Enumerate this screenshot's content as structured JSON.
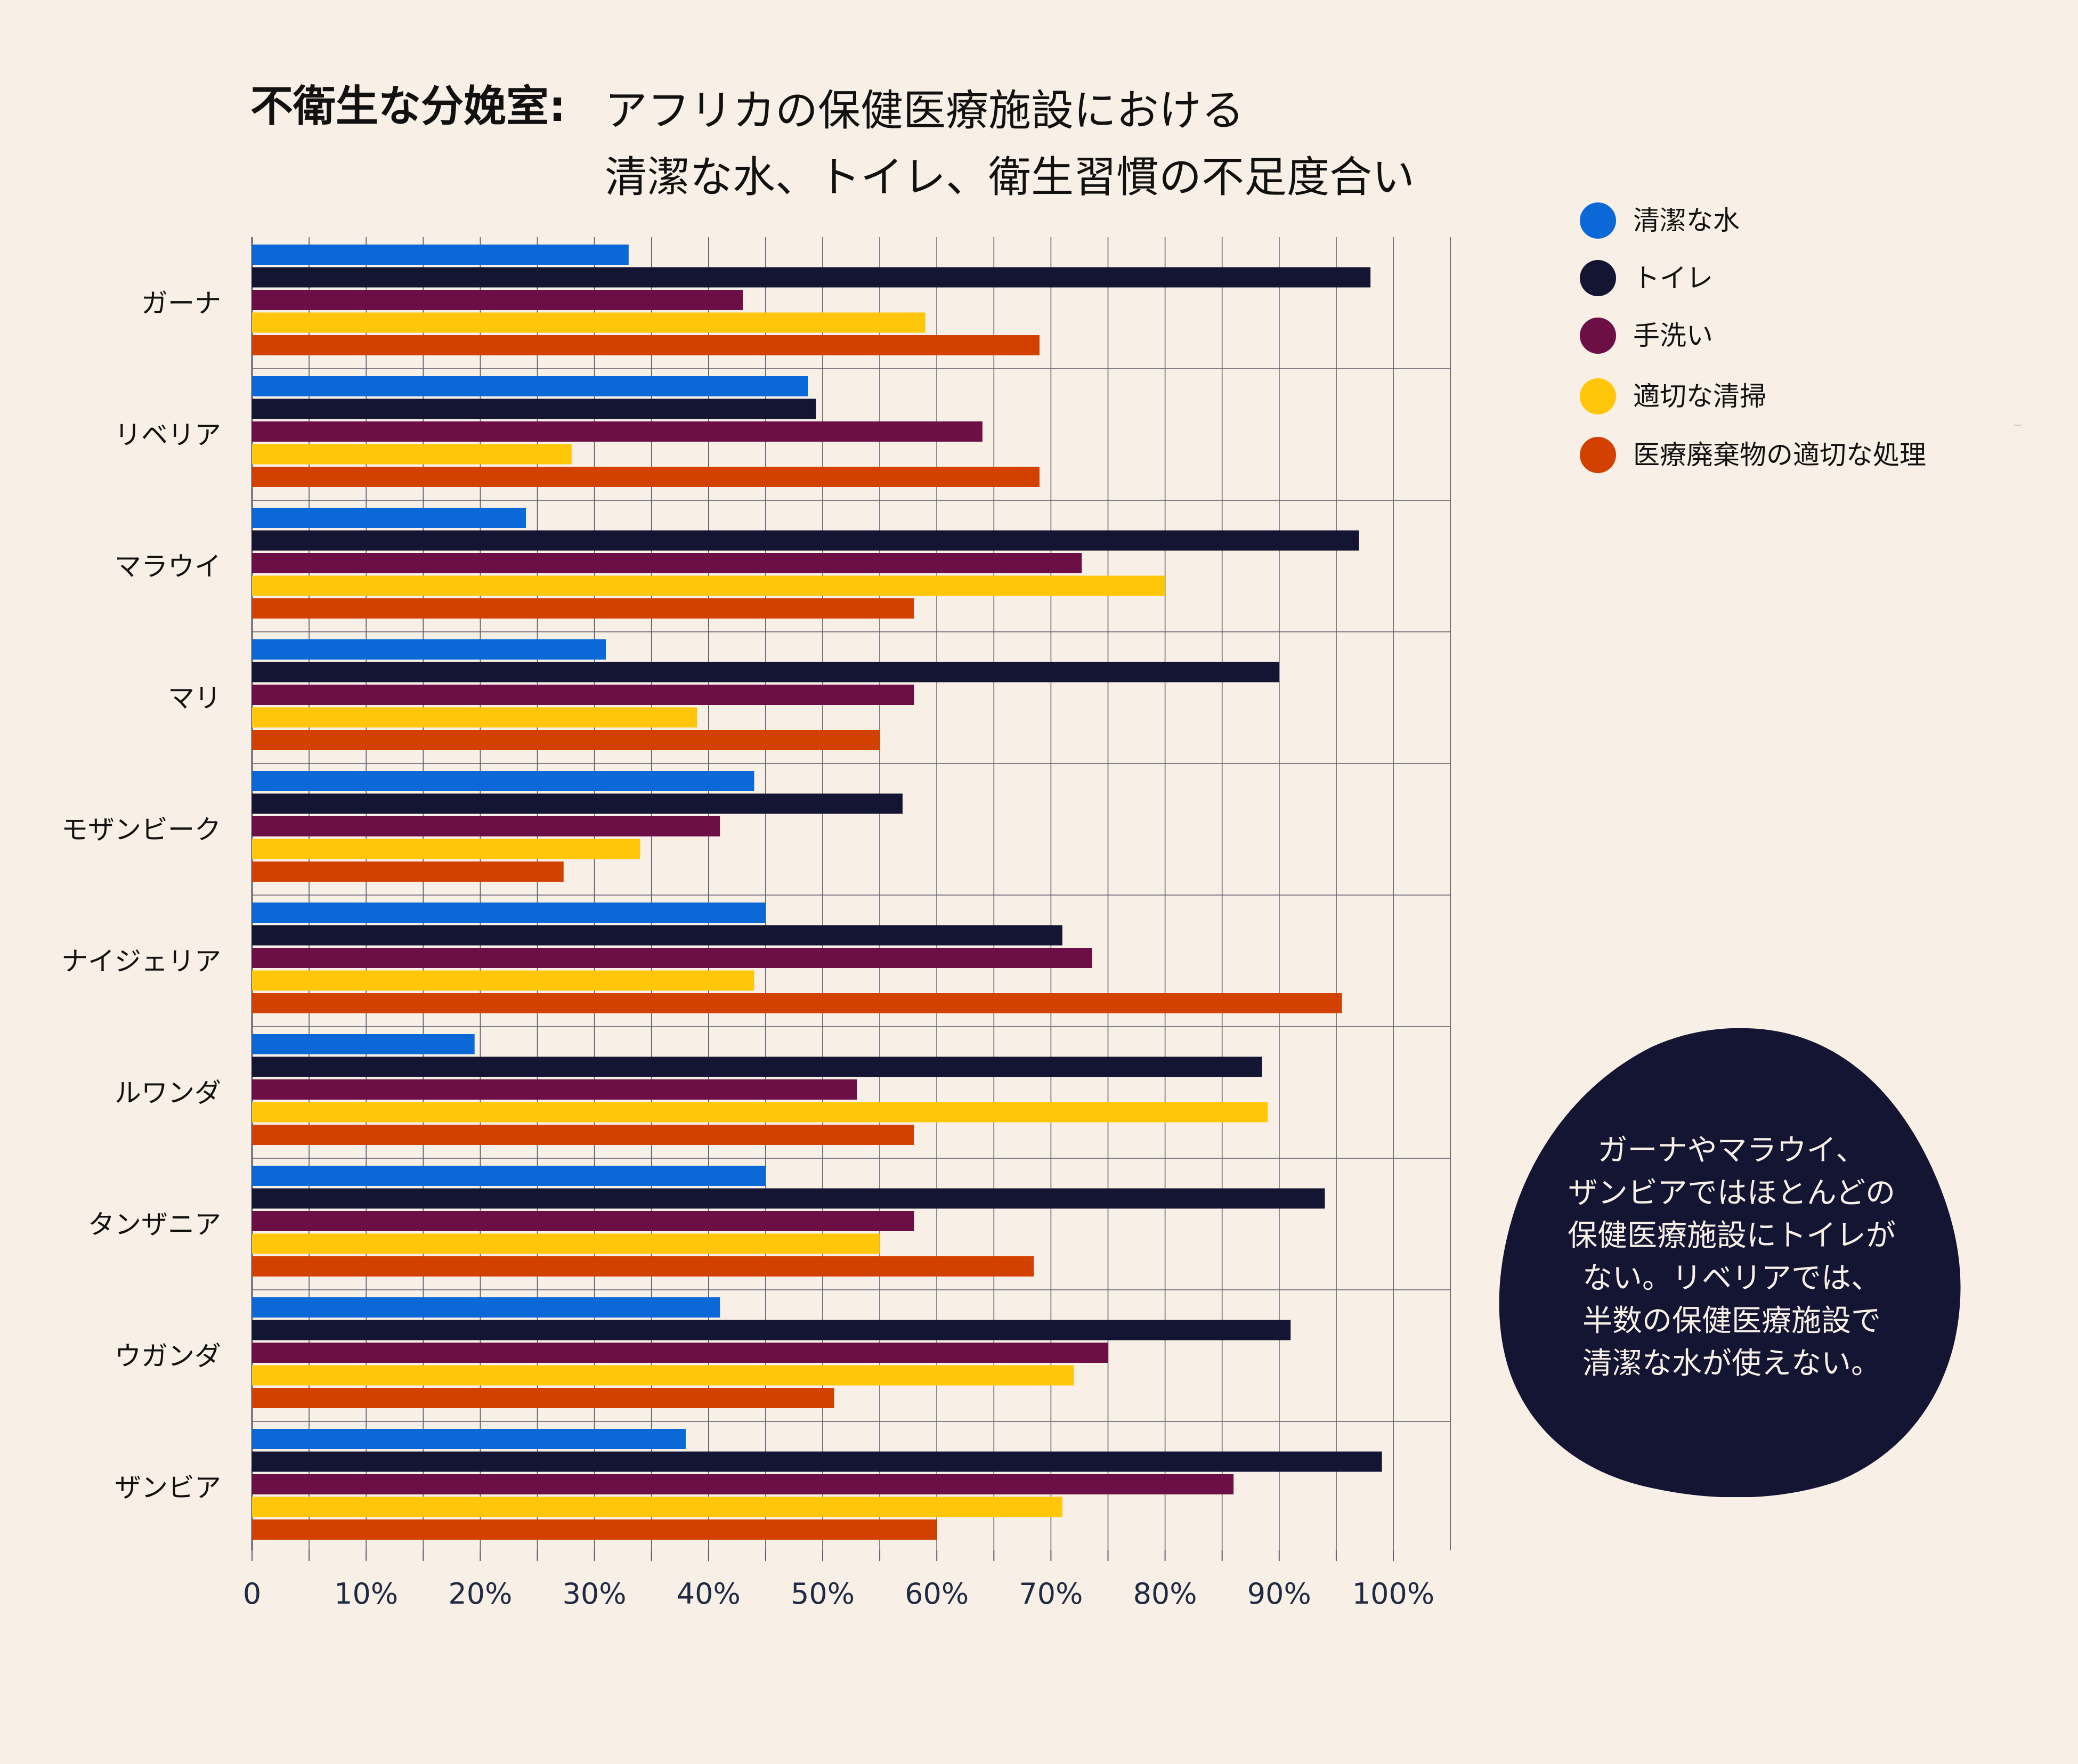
{
  "title": {
    "bold": "不衛生な分娩室:",
    "line1": "アフリカの保健医療施設における",
    "line2": "清潔な水、トイレ、衛生習慣の不足度合い"
  },
  "colors": {
    "background": "#f8f0e6",
    "grid": "#5a5a6a",
    "axis_text": "#1f2a44",
    "callout_bg": "#141433"
  },
  "legend": [
    {
      "label": "清潔な水",
      "color": "#0a69d6"
    },
    {
      "label": "トイレ",
      "color": "#141433"
    },
    {
      "label": "手洗い",
      "color": "#6d0f47"
    },
    {
      "label": "適切な清掃",
      "color": "#ffc60a"
    },
    {
      "label": "医療廃棄物の適切な処理",
      "color": "#d24100"
    }
  ],
  "callout": {
    "text": "ガーナやマラウイ、\nザンビアではほとんどの\n保健医療施設にトイレが\nない。リベリアでは、\n半数の保健医療施設で\n清潔な水が使えない。"
  },
  "chart_data": {
    "type": "bar",
    "orientation": "horizontal",
    "categories": [
      "ガーナ",
      "リベリア",
      "マラウイ",
      "マリ",
      "モザンビーク",
      "ナイジェリア",
      "ルワンダ",
      "タンザニア",
      "ウガンダ",
      "ザンビア"
    ],
    "series": [
      {
        "name": "清潔な水",
        "color": "#0a69d6",
        "values": [
          33,
          48.7,
          24,
          31,
          44,
          45,
          19.5,
          45,
          41,
          38
        ]
      },
      {
        "name": "トイレ",
        "color": "#141433",
        "values": [
          98,
          49.4,
          97,
          90,
          57,
          71,
          88.5,
          94,
          91,
          99
        ]
      },
      {
        "name": "手洗い",
        "color": "#6d0f47",
        "values": [
          43,
          64,
          72.7,
          58,
          41,
          73.6,
          53,
          58,
          75,
          86
        ]
      },
      {
        "name": "適切な清掃",
        "color": "#ffc60a",
        "values": [
          59,
          28,
          80,
          39,
          34,
          44,
          89,
          55,
          72,
          71
        ]
      },
      {
        "name": "医療廃棄物の適切な処理",
        "color": "#d24100",
        "values": [
          69,
          69,
          58,
          55,
          27.3,
          95.5,
          58,
          68.5,
          51,
          60
        ]
      }
    ],
    "xlim": [
      0,
      100
    ],
    "xticks": [
      "0",
      "10%",
      "20%",
      "30%",
      "40%",
      "50%",
      "60%",
      "70%",
      "80%",
      "90%",
      "100%"
    ],
    "grid": true,
    "legend_position": "top-right"
  }
}
